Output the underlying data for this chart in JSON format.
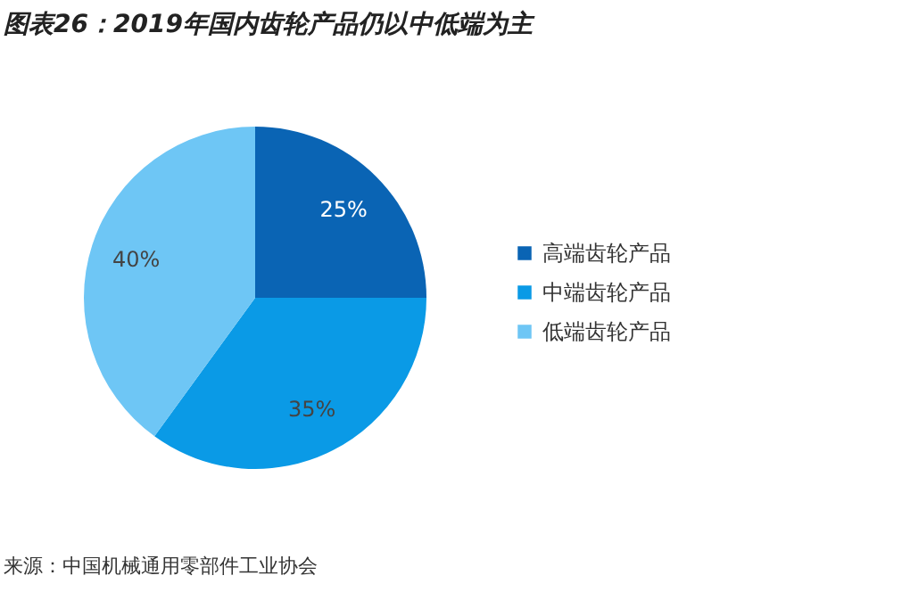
{
  "chart_data": {
    "type": "pie",
    "title": "图表26：2019年国内齿轮产品仍以中低端为主",
    "categories": [
      "高端齿轮产品",
      "中端齿轮产品",
      "低端齿轮产品"
    ],
    "values": [
      25,
      35,
      40
    ],
    "colors": [
      "#0a64b4",
      "#0a9ae6",
      "#6ec6f5"
    ],
    "value_labels": [
      "25%",
      "35%",
      "40%"
    ],
    "legend": "right",
    "annotations": [
      "来源：中国机械通用零部件工业协会"
    ]
  }
}
